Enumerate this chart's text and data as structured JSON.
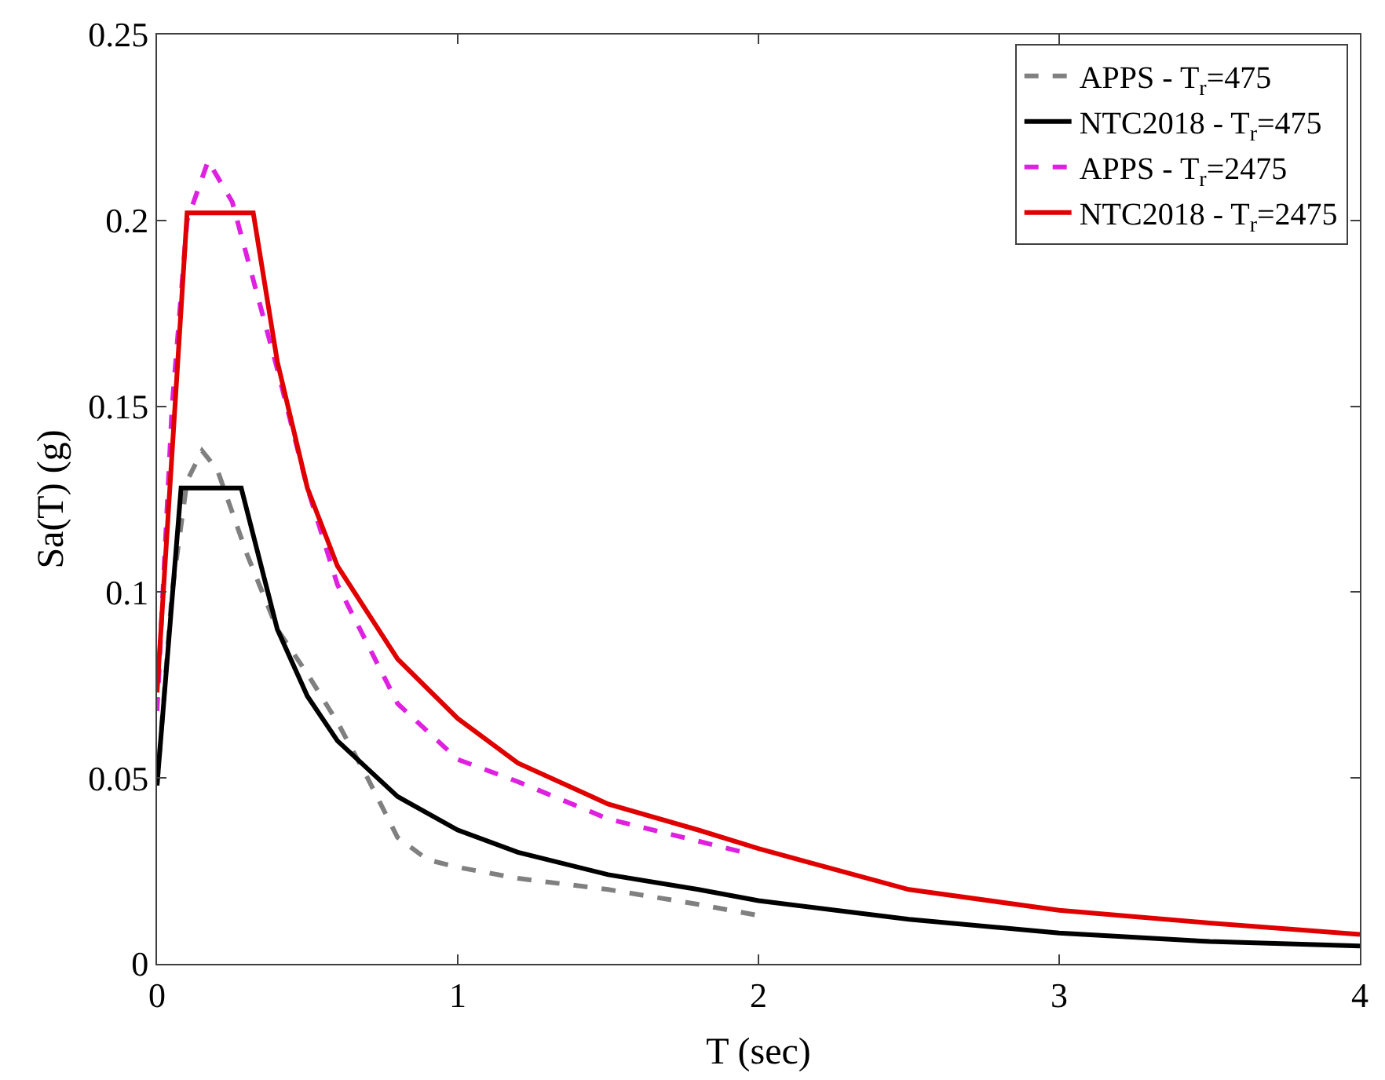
{
  "chart_data": {
    "type": "line",
    "xlabel": "T (sec)",
    "ylabel": "Sa(T) (g)",
    "xlim": [
      0,
      4
    ],
    "ylim": [
      0,
      0.25
    ],
    "xticks": [
      0,
      1,
      2,
      3,
      4
    ],
    "yticks": [
      0,
      0.05,
      0.1,
      0.15,
      0.2,
      0.25
    ],
    "legend": "top right",
    "marker": "none",
    "series": [
      {
        "name": "APPS - T$_{r}$=475",
        "color": "#808080",
        "line_style": "dashed",
        "x": [
          0,
          0.05,
          0.1,
          0.15,
          0.2,
          0.3,
          0.4,
          0.5,
          0.6,
          0.7,
          0.8,
          0.9,
          1.0,
          1.2,
          1.5,
          1.8,
          2.0
        ],
        "values": [
          0.048,
          0.1,
          0.13,
          0.138,
          0.133,
          0.11,
          0.09,
          0.078,
          0.065,
          0.05,
          0.034,
          0.028,
          0.026,
          0.023,
          0.02,
          0.016,
          0.013
        ]
      },
      {
        "name": "NTC2018 - T$_{r}$=475",
        "color": "#000000",
        "line_style": "solid",
        "x": [
          0,
          0.08,
          0.28,
          0.4,
          0.5,
          0.6,
          0.8,
          1.0,
          1.2,
          1.5,
          1.8,
          2.0,
          2.5,
          3.0,
          3.5,
          4.0
        ],
        "values": [
          0.048,
          0.128,
          0.128,
          0.09,
          0.072,
          0.06,
          0.045,
          0.036,
          0.03,
          0.024,
          0.02,
          0.017,
          0.012,
          0.0083,
          0.006,
          0.0048
        ]
      },
      {
        "name": "APPS - T$_{r}$=2475",
        "color": "#e020e0",
        "line_style": "dashed",
        "x": [
          0,
          0.05,
          0.1,
          0.17,
          0.25,
          0.3,
          0.4,
          0.5,
          0.6,
          0.8,
          1.0,
          1.2,
          1.5,
          1.8,
          1.95
        ],
        "values": [
          0.068,
          0.15,
          0.2,
          0.216,
          0.205,
          0.19,
          0.16,
          0.128,
          0.102,
          0.07,
          0.055,
          0.049,
          0.039,
          0.033,
          0.03
        ]
      },
      {
        "name": "NTC2018 - T$_{r}$=2475",
        "color": "#e00000",
        "line_style": "solid",
        "x": [
          0,
          0.1,
          0.32,
          0.4,
          0.5,
          0.6,
          0.8,
          1.0,
          1.2,
          1.5,
          1.8,
          2.0,
          2.5,
          3.0,
          3.5,
          4.0
        ],
        "values": [
          0.073,
          0.202,
          0.202,
          0.162,
          0.128,
          0.107,
          0.082,
          0.066,
          0.054,
          0.043,
          0.036,
          0.031,
          0.02,
          0.0144,
          0.011,
          0.0079
        ]
      }
    ]
  }
}
